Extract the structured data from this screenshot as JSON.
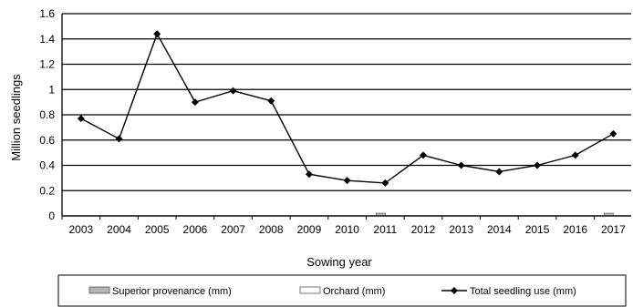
{
  "chart_data": {
    "type": "line",
    "title": "",
    "xlabel": "Sowing year",
    "ylabel": "Million seedlings",
    "ylim": [
      0,
      1.6
    ],
    "yticks": [
      0,
      0.2,
      0.4,
      0.6,
      0.8,
      1,
      1.2,
      1.4,
      1.6
    ],
    "ytick_labels": [
      "0",
      "0.2",
      "0.4",
      "0.6",
      "0.8",
      "1",
      "1.2",
      "1.4",
      "1.6"
    ],
    "grid": true,
    "legend_position": "bottom",
    "categories": [
      "2003",
      "2004",
      "2005",
      "2006",
      "2007",
      "2008",
      "2009",
      "2010",
      "2011",
      "2012",
      "2013",
      "2014",
      "2015",
      "2016",
      "2017"
    ],
    "series": [
      {
        "name": "Superior provenance (mm)",
        "type": "bar",
        "color": "#b3b3b3",
        "values": [
          0,
          0,
          0,
          0,
          0,
          0,
          0,
          0,
          0.015,
          0,
          0,
          0,
          0,
          0,
          0.015
        ]
      },
      {
        "name": "Orchard (mm)",
        "type": "bar",
        "color": "#ffffff",
        "values": [
          0,
          0,
          0,
          0,
          0,
          0,
          0,
          0,
          0,
          0,
          0,
          0,
          0,
          0,
          0
        ]
      },
      {
        "name": "Total seedling use (mm)",
        "type": "line",
        "color": "#000000",
        "marker": "diamond",
        "values": [
          0.77,
          0.61,
          1.44,
          0.9,
          0.99,
          0.91,
          0.33,
          0.28,
          0.26,
          0.48,
          0.4,
          0.35,
          0.4,
          0.48,
          0.65
        ]
      }
    ]
  }
}
